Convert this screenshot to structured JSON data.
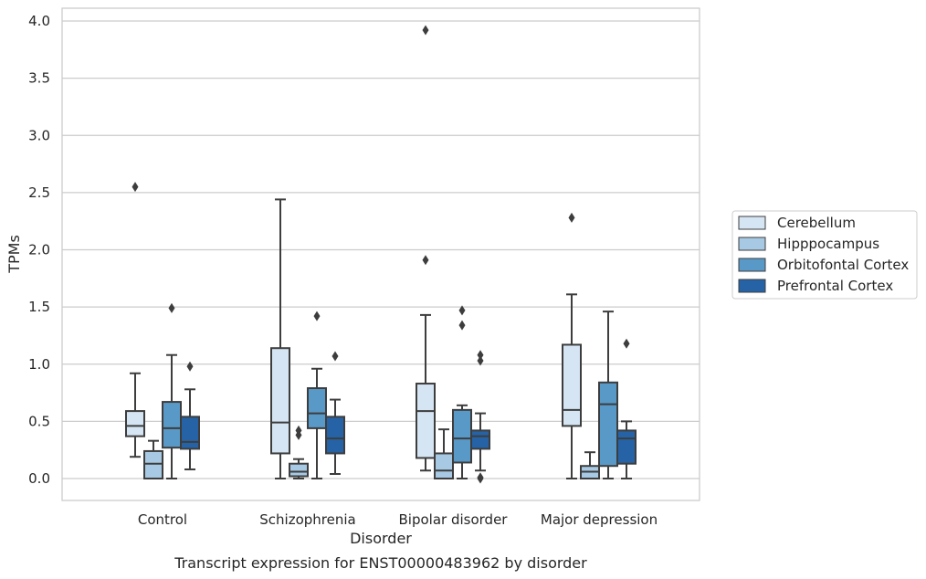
{
  "caption": "Transcript expression for ENST00000483962 by disorder",
  "chart_data": {
    "type": "boxplot",
    "title": "",
    "xlabel": "Disorder",
    "ylabel": "TPMs",
    "ylim": [
      -0.19,
      4.12
    ],
    "yticks": [
      "0.0",
      "0.5",
      "1.0",
      "1.5",
      "2.0",
      "2.5",
      "3.0",
      "3.5",
      "4.0"
    ],
    "ytick_values": [
      0,
      0.5,
      1.0,
      1.5,
      2.0,
      2.5,
      3.0,
      3.5,
      4.0
    ],
    "grid": true,
    "legend_position": "right",
    "categories": [
      "Control",
      "Schizophrenia",
      "Bipolar disorder",
      "Major depression"
    ],
    "series": [
      {
        "name": "Cerebellum",
        "color": "#d6e5f4",
        "boxes": [
          {
            "whisker_low": 0.19,
            "q1": 0.37,
            "median": 0.46,
            "q3": 0.59,
            "whisker_high": 0.92,
            "outliers": [
              2.55
            ]
          },
          {
            "whisker_low": 0.0,
            "q1": 0.22,
            "median": 0.49,
            "q3": 1.14,
            "whisker_high": 2.44,
            "outliers": []
          },
          {
            "whisker_low": 0.07,
            "q1": 0.18,
            "median": 0.59,
            "q3": 0.83,
            "whisker_high": 1.43,
            "outliers": [
              1.91,
              3.92
            ]
          },
          {
            "whisker_low": 0.0,
            "q1": 0.46,
            "median": 0.6,
            "q3": 1.17,
            "whisker_high": 1.61,
            "outliers": [
              2.28
            ]
          }
        ]
      },
      {
        "name": "Hipppocampus",
        "color": "#a7c9e3",
        "boxes": [
          {
            "whisker_low": 0.0,
            "q1": 0.0,
            "median": 0.13,
            "q3": 0.24,
            "whisker_high": 0.33,
            "outliers": []
          },
          {
            "whisker_low": 0.0,
            "q1": 0.02,
            "median": 0.06,
            "q3": 0.13,
            "whisker_high": 0.17,
            "outliers": [
              0.38,
              0.42
            ]
          },
          {
            "whisker_low": 0.0,
            "q1": 0.0,
            "median": 0.07,
            "q3": 0.22,
            "whisker_high": 0.43,
            "outliers": []
          },
          {
            "whisker_low": 0.0,
            "q1": 0.0,
            "median": 0.06,
            "q3": 0.11,
            "whisker_high": 0.23,
            "outliers": []
          }
        ]
      },
      {
        "name": "Orbitofontal Cortex",
        "color": "#5999c8",
        "boxes": [
          {
            "whisker_low": 0.0,
            "q1": 0.27,
            "median": 0.44,
            "q3": 0.67,
            "whisker_high": 1.08,
            "outliers": [
              1.49
            ]
          },
          {
            "whisker_low": 0.0,
            "q1": 0.44,
            "median": 0.57,
            "q3": 0.79,
            "whisker_high": 0.96,
            "outliers": [
              1.42
            ]
          },
          {
            "whisker_low": 0.0,
            "q1": 0.14,
            "median": 0.35,
            "q3": 0.6,
            "whisker_high": 0.64,
            "outliers": [
              1.34,
              1.47
            ]
          },
          {
            "whisker_low": 0.0,
            "q1": 0.11,
            "median": 0.65,
            "q3": 0.84,
            "whisker_high": 1.46,
            "outliers": []
          }
        ]
      },
      {
        "name": "Prefrontal Cortex",
        "color": "#2563a6",
        "boxes": [
          {
            "whisker_low": 0.08,
            "q1": 0.26,
            "median": 0.32,
            "q3": 0.54,
            "whisker_high": 0.78,
            "outliers": [
              0.98
            ]
          },
          {
            "whisker_low": 0.04,
            "q1": 0.22,
            "median": 0.35,
            "q3": 0.54,
            "whisker_high": 0.69,
            "outliers": [
              1.07
            ]
          },
          {
            "whisker_low": 0.07,
            "q1": 0.26,
            "median": 0.37,
            "q3": 0.42,
            "whisker_high": 0.57,
            "outliers": [
              0.0,
              0.01,
              1.03,
              1.08
            ]
          },
          {
            "whisker_low": 0.0,
            "q1": 0.13,
            "median": 0.35,
            "q3": 0.42,
            "whisker_high": 0.5,
            "outliers": [
              1.18
            ]
          }
        ]
      }
    ]
  }
}
